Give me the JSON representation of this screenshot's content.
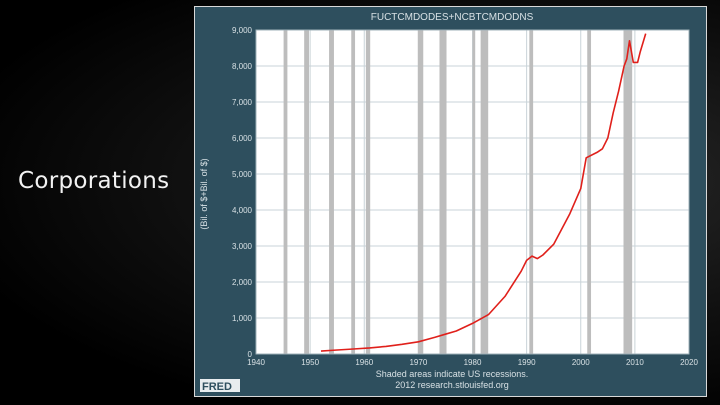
{
  "slide": {
    "heading": "Corporations"
  },
  "footer": {
    "logo": "FRED",
    "note": "Shaded areas indicate US recessions.",
    "source": "2012 research.stlouisfed.org"
  },
  "colors": {
    "frame": "#2e4f5e",
    "plot_bg": "#ffffff",
    "grid": "#c9d3d8",
    "recession": "#bdbdbd",
    "line": "#e0201b"
  },
  "chart_data": {
    "type": "line",
    "title": "FUCTCMDODES+NCBTCMDODNS",
    "xlabel": "",
    "ylabel": "(Bil. of $+Bil. of $)",
    "xlim": [
      1940,
      2020
    ],
    "ylim": [
      0,
      9000
    ],
    "x_ticks": [
      "1940",
      "1950",
      "1960",
      "1970",
      "1980",
      "1990",
      "2000",
      "2010",
      "2020"
    ],
    "y_ticks": [
      "0",
      "1,000",
      "2,000",
      "3,000",
      "4,000",
      "5,000",
      "6,000",
      "7,000",
      "8,000",
      "9,000"
    ],
    "y_tick_values": [
      0,
      1000,
      2000,
      3000,
      4000,
      5000,
      6000,
      7000,
      8000,
      9000
    ],
    "grid": true,
    "legend": "none",
    "recessions": [
      [
        1945.1,
        1945.8
      ],
      [
        1948.9,
        1949.8
      ],
      [
        1953.5,
        1954.4
      ],
      [
        1957.6,
        1958.3
      ],
      [
        1960.3,
        1961.1
      ],
      [
        1969.9,
        1970.9
      ],
      [
        1973.9,
        1975.2
      ],
      [
        1980.0,
        1980.5
      ],
      [
        1981.5,
        1982.9
      ],
      [
        1990.5,
        1991.2
      ],
      [
        2001.2,
        2001.9
      ],
      [
        2007.9,
        2009.5
      ]
    ],
    "series": [
      {
        "name": "",
        "x": [
          1952,
          1955,
          1958,
          1961,
          1964,
          1967,
          1970,
          1973,
          1975,
          1977,
          1980,
          1983,
          1986,
          1989,
          1990,
          1991,
          1992,
          1993,
          1995,
          1998,
          2000,
          2001,
          2003,
          2004,
          2005,
          2006,
          2007,
          2008,
          2008.5,
          2009,
          2009.7,
          2010.5,
          2011,
          2012
        ],
        "y": [
          80,
          110,
          140,
          170,
          210,
          270,
          340,
          460,
          550,
          640,
          850,
          1100,
          1600,
          2300,
          2600,
          2720,
          2650,
          2750,
          3050,
          3900,
          4600,
          5450,
          5600,
          5700,
          6000,
          6700,
          7300,
          8000,
          8200,
          8700,
          8100,
          8100,
          8400,
          8900
        ]
      }
    ]
  }
}
